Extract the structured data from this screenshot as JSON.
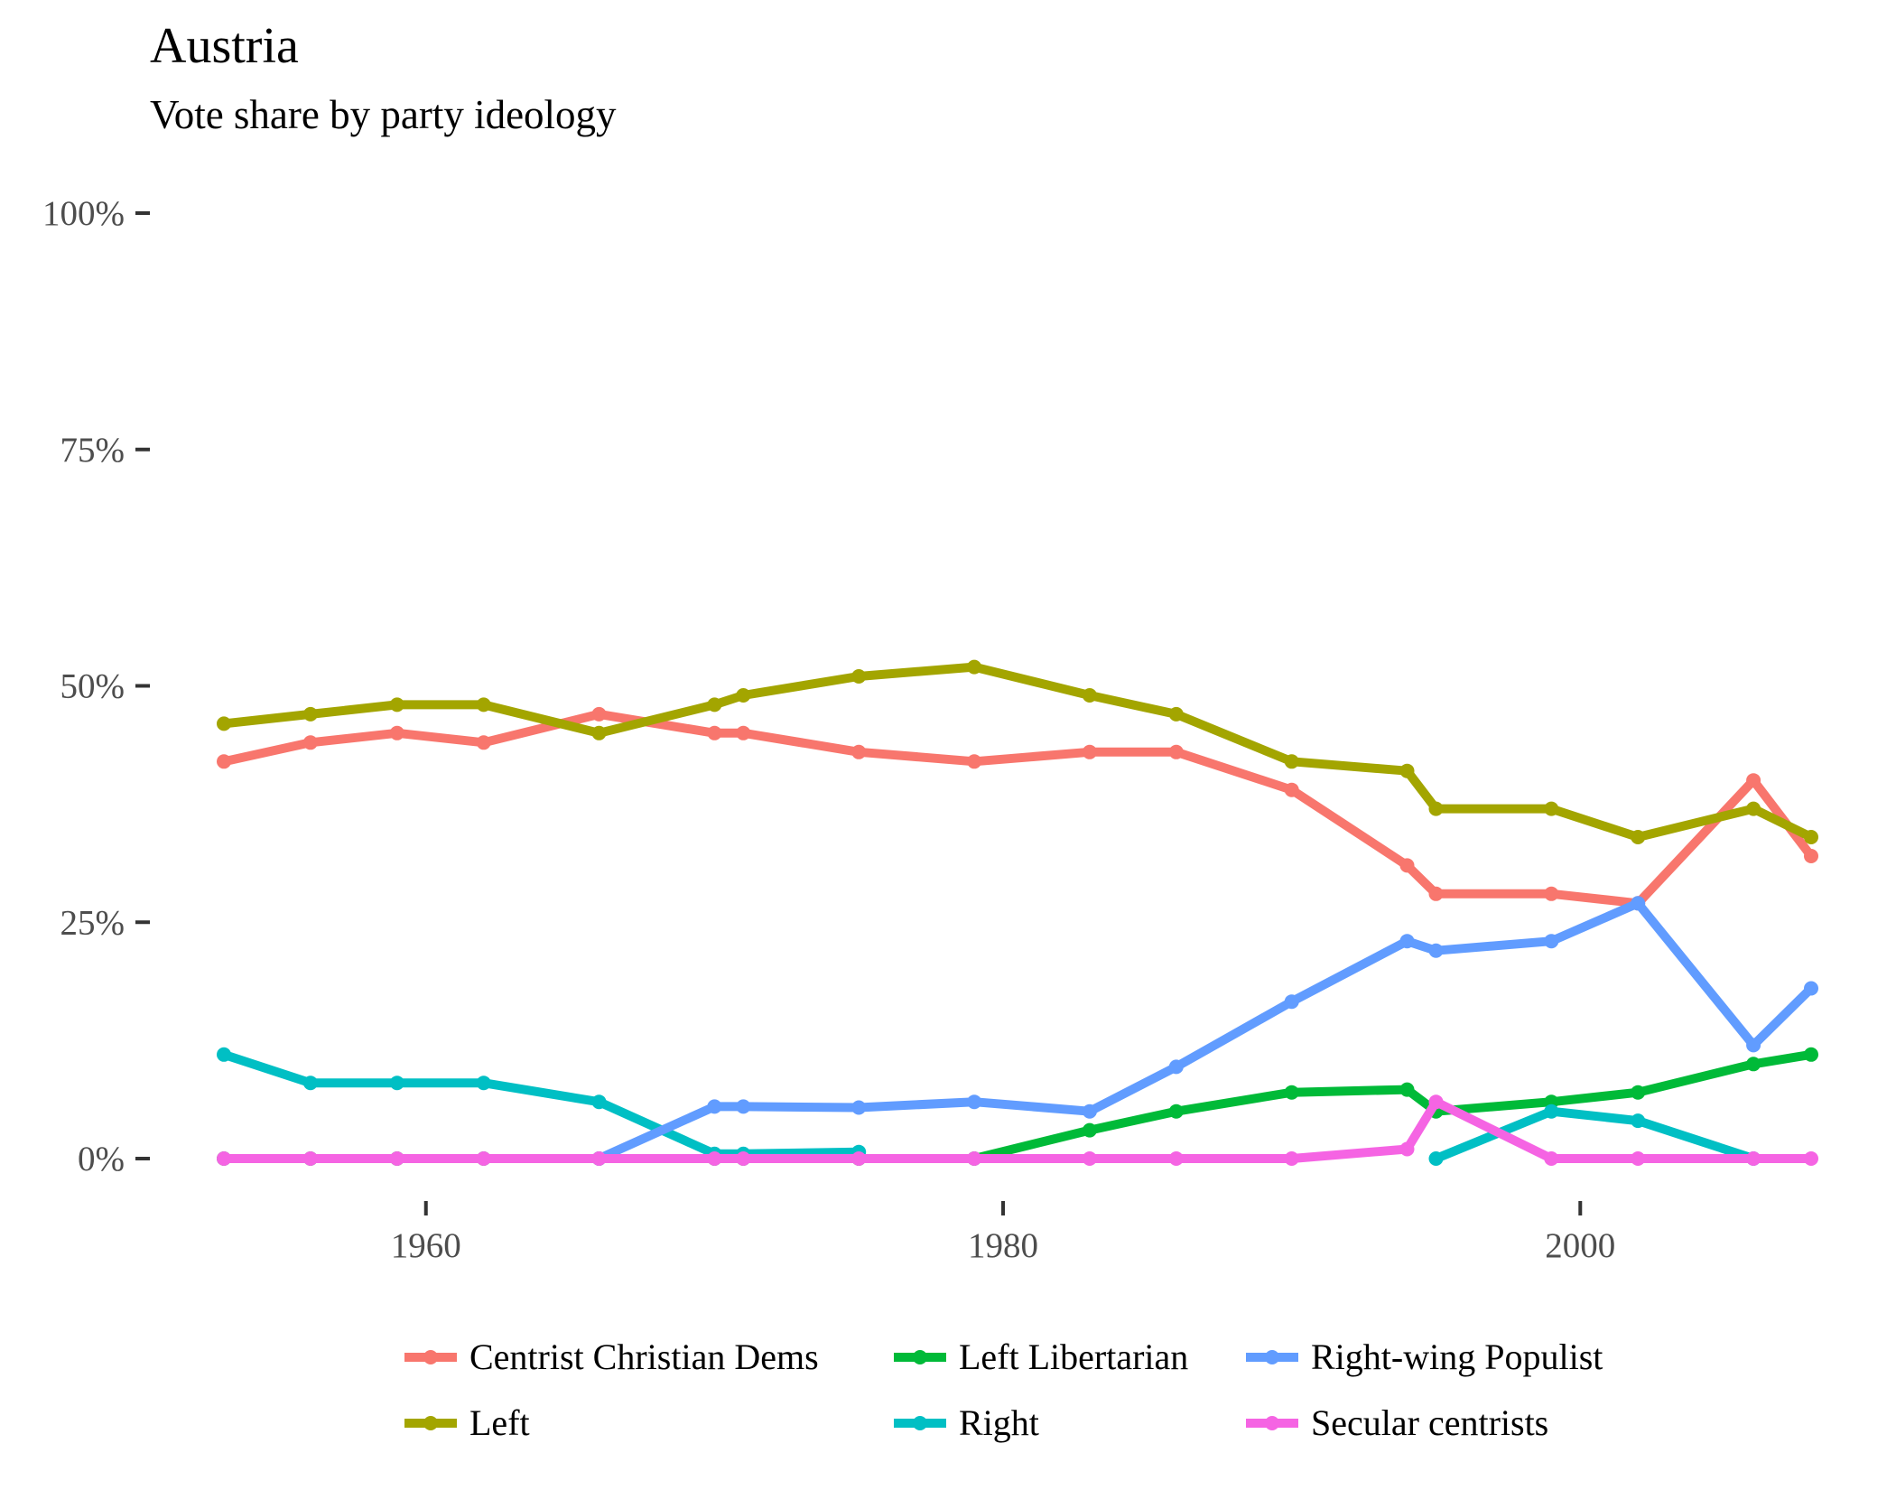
{
  "chart_data": {
    "type": "line",
    "title": "Austria",
    "subtitle": "Vote share by party ideology",
    "xlabel": "",
    "ylabel": "",
    "xlim": [
      1953,
      2008
    ],
    "ylim": [
      0,
      100
    ],
    "x_ticks": [
      1960,
      1980,
      2000
    ],
    "y_ticks": [
      0,
      25,
      50,
      75,
      100
    ],
    "y_tick_labels": [
      "0%",
      "25%",
      "50%",
      "75%",
      "100%"
    ],
    "grid": false,
    "legend_position": "bottom",
    "series": [
      {
        "name": "Centrist Christian Dems",
        "color": "#F8766D",
        "segments": [
          [
            [
              1953,
              42
            ],
            [
              1956,
              44
            ],
            [
              1959,
              45
            ],
            [
              1962,
              44
            ],
            [
              1966,
              47
            ],
            [
              1970,
              45
            ],
            [
              1971,
              45
            ],
            [
              1975,
              43
            ],
            [
              1979,
              42
            ],
            [
              1983,
              43
            ],
            [
              1986,
              43
            ],
            [
              1990,
              39
            ],
            [
              1994,
              31
            ],
            [
              1995,
              28
            ],
            [
              1999,
              28
            ],
            [
              2002,
              27
            ],
            [
              2006,
              40
            ],
            [
              2008,
              32
            ]
          ]
        ]
      },
      {
        "name": "Left",
        "color": "#A3A500",
        "segments": [
          [
            [
              1953,
              46
            ],
            [
              1956,
              47
            ],
            [
              1959,
              48
            ],
            [
              1962,
              48
            ],
            [
              1966,
              45
            ],
            [
              1970,
              48
            ],
            [
              1971,
              49
            ],
            [
              1975,
              51
            ],
            [
              1979,
              52
            ],
            [
              1983,
              49
            ],
            [
              1986,
              47
            ],
            [
              1990,
              42
            ],
            [
              1994,
              41
            ],
            [
              1995,
              37
            ],
            [
              1999,
              37
            ],
            [
              2002,
              34
            ],
            [
              2006,
              37
            ],
            [
              2008,
              34
            ]
          ]
        ]
      },
      {
        "name": "Left Libertarian",
        "color": "#00BA38",
        "segments": [
          [
            [
              1953,
              0
            ],
            [
              1956,
              0
            ],
            [
              1959,
              0
            ],
            [
              1962,
              0
            ],
            [
              1966,
              0
            ],
            [
              1970,
              0
            ],
            [
              1971,
              0
            ],
            [
              1975,
              0
            ],
            [
              1979,
              0
            ],
            [
              1983,
              3
            ],
            [
              1986,
              5
            ],
            [
              1990,
              7
            ],
            [
              1994,
              7.3
            ],
            [
              1995,
              5
            ],
            [
              1999,
              6
            ],
            [
              2002,
              7
            ],
            [
              2006,
              10
            ],
            [
              2008,
              11
            ]
          ]
        ]
      },
      {
        "name": "Right",
        "color": "#00BFC4",
        "segments": [
          [
            [
              1953,
              11
            ],
            [
              1956,
              8
            ],
            [
              1959,
              8
            ],
            [
              1962,
              8
            ],
            [
              1966,
              6
            ],
            [
              1970,
              0.5
            ],
            [
              1971,
              0.5
            ],
            [
              1975,
              0.7
            ]
          ],
          [
            [
              1995,
              0
            ],
            [
              1999,
              5
            ],
            [
              2002,
              4
            ],
            [
              2006,
              0
            ]
          ]
        ]
      },
      {
        "name": "Right-wing Populist",
        "color": "#619CFF",
        "segments": [
          [
            [
              1966,
              0
            ],
            [
              1970,
              5.5
            ],
            [
              1971,
              5.5
            ],
            [
              1975,
              5.4
            ],
            [
              1979,
              6
            ],
            [
              1983,
              5
            ],
            [
              1986,
              9.7
            ],
            [
              1990,
              16.6
            ],
            [
              1994,
              23
            ],
            [
              1995,
              22
            ],
            [
              1999,
              23
            ],
            [
              2002,
              27
            ],
            [
              2006,
              12
            ],
            [
              2008,
              18
            ]
          ]
        ]
      },
      {
        "name": "Secular centrists",
        "color": "#F564E3",
        "segments": [
          [
            [
              1953,
              0
            ],
            [
              1956,
              0
            ],
            [
              1959,
              0
            ],
            [
              1962,
              0
            ],
            [
              1966,
              0
            ],
            [
              1970,
              0
            ],
            [
              1971,
              0
            ],
            [
              1975,
              0
            ],
            [
              1979,
              0
            ],
            [
              1983,
              0
            ],
            [
              1986,
              0
            ],
            [
              1990,
              0
            ],
            [
              1994,
              1
            ],
            [
              1995,
              6
            ],
            [
              1999,
              0
            ],
            [
              2002,
              0
            ],
            [
              2006,
              0
            ],
            [
              2008,
              0
            ]
          ]
        ]
      }
    ],
    "legend_order": [
      "Centrist Christian Dems",
      "Left Libertarian",
      "Right-wing Populist",
      "Left",
      "Right",
      "Secular centrists"
    ]
  }
}
